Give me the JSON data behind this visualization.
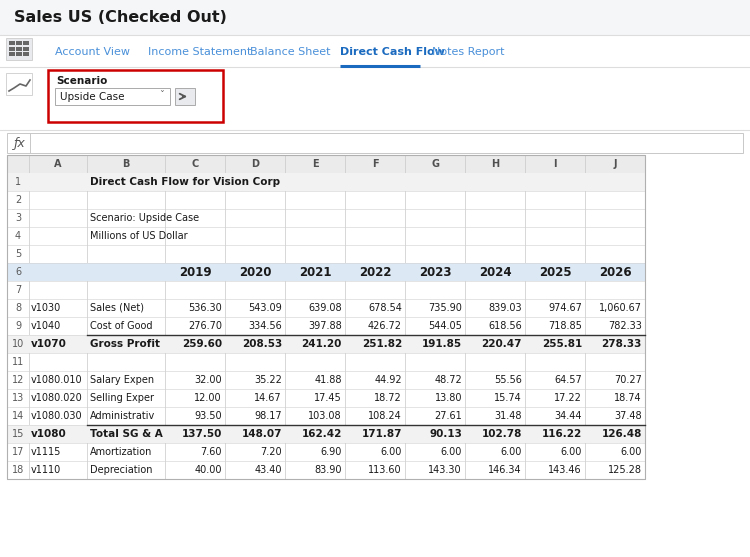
{
  "title": "Sales US (Checked Out)",
  "tabs": [
    "Account View",
    "Income Statement",
    "Balance Sheet",
    "Direct Cash Flow",
    "Notes Report"
  ],
  "active_tab": "Direct Cash Flow",
  "scenario_label": "Scenario",
  "scenario_value": "Upside Case",
  "rows": [
    {
      "num": "1",
      "col_a": "",
      "col_b": "Direct Cash Flow for Vision Corp",
      "values": [
        "",
        "",
        "",
        "",
        "",
        "",
        "",
        ""
      ],
      "bold": true,
      "header_row": false,
      "top_border": false
    },
    {
      "num": "2",
      "col_a": "",
      "col_b": "",
      "values": [
        "",
        "",
        "",
        "",
        "",
        "",
        "",
        ""
      ],
      "bold": false,
      "header_row": false,
      "top_border": false
    },
    {
      "num": "3",
      "col_a": "",
      "col_b": "Scenario: Upside Case",
      "values": [
        "",
        "",
        "",
        "",
        "",
        "",
        "",
        ""
      ],
      "bold": false,
      "header_row": false,
      "top_border": false
    },
    {
      "num": "4",
      "col_a": "",
      "col_b": "Millions of US Dollar",
      "values": [
        "",
        "",
        "",
        "",
        "",
        "",
        "",
        ""
      ],
      "bold": false,
      "header_row": false,
      "top_border": false
    },
    {
      "num": "5",
      "col_a": "",
      "col_b": "",
      "values": [
        "",
        "",
        "",
        "",
        "",
        "",
        "",
        ""
      ],
      "bold": false,
      "header_row": false,
      "top_border": false
    },
    {
      "num": "6",
      "col_a": "",
      "col_b": "",
      "values": [
        "2019",
        "2020",
        "2021",
        "2022",
        "2023",
        "2024",
        "2025",
        "2026"
      ],
      "bold": true,
      "header_row": true,
      "top_border": false
    },
    {
      "num": "7",
      "col_a": "",
      "col_b": "",
      "values": [
        "",
        "",
        "",
        "",
        "",
        "",
        "",
        ""
      ],
      "bold": false,
      "header_row": false,
      "top_border": false
    },
    {
      "num": "8",
      "col_a": "v1030",
      "col_b": "Sales (Net)",
      "values": [
        "536.30",
        "543.09",
        "639.08",
        "678.54",
        "735.90",
        "839.03",
        "974.67",
        "1,060.67"
      ],
      "bold": false,
      "header_row": false,
      "top_border": false
    },
    {
      "num": "9",
      "col_a": "v1040",
      "col_b": "Cost of Good",
      "values": [
        "276.70",
        "334.56",
        "397.88",
        "426.72",
        "544.05",
        "618.56",
        "718.85",
        "782.33"
      ],
      "bold": false,
      "header_row": false,
      "top_border": false
    },
    {
      "num": "10",
      "col_a": "v1070",
      "col_b": "Gross Profit",
      "values": [
        "259.60",
        "208.53",
        "241.20",
        "251.82",
        "191.85",
        "220.47",
        "255.81",
        "278.33"
      ],
      "bold": true,
      "header_row": false,
      "top_border": true
    },
    {
      "num": "11",
      "col_a": "",
      "col_b": "",
      "values": [
        "",
        "",
        "",
        "",
        "",
        "",
        "",
        ""
      ],
      "bold": false,
      "header_row": false,
      "top_border": false
    },
    {
      "num": "12",
      "col_a": "v1080.010",
      "col_b": "Salary Expen",
      "values": [
        "32.00",
        "35.22",
        "41.88",
        "44.92",
        "48.72",
        "55.56",
        "64.57",
        "70.27"
      ],
      "bold": false,
      "header_row": false,
      "top_border": false
    },
    {
      "num": "13",
      "col_a": "v1080.020",
      "col_b": "Selling Exper",
      "values": [
        "12.00",
        "14.67",
        "17.45",
        "18.72",
        "13.80",
        "15.74",
        "17.22",
        "18.74"
      ],
      "bold": false,
      "header_row": false,
      "top_border": false
    },
    {
      "num": "14",
      "col_a": "v1080.030",
      "col_b": "Administrativ",
      "values": [
        "93.50",
        "98.17",
        "103.08",
        "108.24",
        "27.61",
        "31.48",
        "34.44",
        "37.48"
      ],
      "bold": false,
      "header_row": false,
      "top_border": false
    },
    {
      "num": "15",
      "col_a": "v1080",
      "col_b": "Total SG & A",
      "values": [
        "137.50",
        "148.07",
        "162.42",
        "171.87",
        "90.13",
        "102.78",
        "116.22",
        "126.48"
      ],
      "bold": true,
      "header_row": false,
      "top_border": true
    },
    {
      "num": "17",
      "col_a": "v1115",
      "col_b": "Amortization",
      "values": [
        "7.60",
        "7.20",
        "6.90",
        "6.00",
        "6.00",
        "6.00",
        "6.00",
        "6.00"
      ],
      "bold": false,
      "header_row": false,
      "top_border": false
    },
    {
      "num": "18",
      "col_a": "v1110",
      "col_b": "Depreciation",
      "values": [
        "40.00",
        "43.40",
        "83.90",
        "113.60",
        "143.30",
        "146.34",
        "143.46",
        "125.28"
      ],
      "bold": false,
      "header_row": false,
      "top_border": false
    }
  ],
  "col_headers": [
    "",
    "A",
    "B",
    "C",
    "D",
    "E",
    "F",
    "G",
    "H",
    "I",
    "J"
  ],
  "bg_color": "#f5f6f8",
  "white": "#ffffff",
  "header_blue": "#dce9f5",
  "tab_active_color": "#1a6abf",
  "tab_inactive_color": "#4a90d9",
  "border_color": "#c8c8c8",
  "red_border": "#cc0000",
  "grid_color": "#d4d4d4",
  "text_dark": "#1a1a1a",
  "row_num_color": "#595959",
  "icon_bg": "#e8eaed",
  "tab_underline": "#1a6abf"
}
